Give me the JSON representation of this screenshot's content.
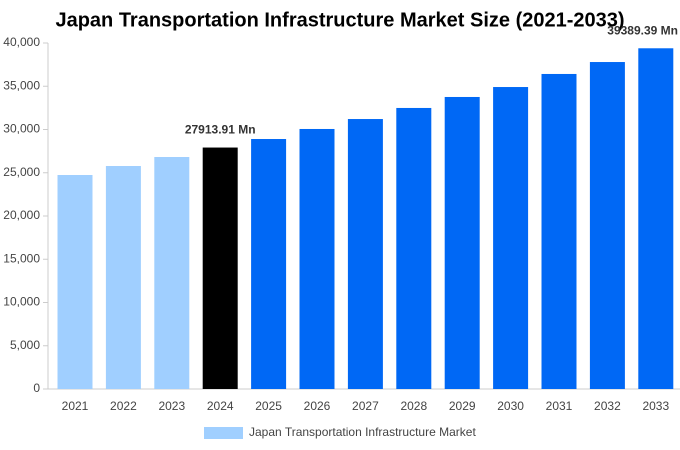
{
  "chart_data": {
    "type": "bar",
    "title": "Japan Transportation Infrastructure Market Size (2021-2033)",
    "categories": [
      "2021",
      "2022",
      "2023",
      "2024",
      "2025",
      "2026",
      "2027",
      "2028",
      "2029",
      "2030",
      "2031",
      "2032",
      "2033"
    ],
    "series": [
      {
        "name": "Japan Transportation Infrastructure Market",
        "color": "#a0cfff",
        "values": [
          24740,
          25780,
          26820,
          27913.91,
          28900,
          30060,
          31210,
          32490,
          33760,
          34910,
          36420,
          37800,
          39389.39
        ],
        "value_labels": [
          null,
          null,
          null,
          "27913.91 Mn",
          null,
          null,
          null,
          null,
          null,
          null,
          null,
          null,
          "39389.39 Mn"
        ],
        "colors": [
          "#a0cfff",
          "#a0cfff",
          "#a0cfff",
          "#000000",
          "#0068f5",
          "#0068f5",
          "#0068f5",
          "#0068f5",
          "#0068f5",
          "#0068f5",
          "#0068f5",
          "#0068f5",
          "#0068f5"
        ]
      }
    ],
    "ylim": [
      0,
      40000
    ],
    "yticks": [
      0,
      {
        "value": 5000,
        "label": "5,000"
      },
      {
        "value": 10000,
        "label": "10,000"
      },
      {
        "value": 15000,
        "label": "15,000"
      },
      {
        "value": 20000,
        "label": "20,000"
      },
      {
        "value": 25000,
        "label": "25,000"
      },
      {
        "value": 30000,
        "label": "30,000"
      },
      {
        "value": 35000,
        "label": "35,000"
      },
      {
        "value": 40000,
        "label": "40,000"
      }
    ],
    "grid": false
  }
}
